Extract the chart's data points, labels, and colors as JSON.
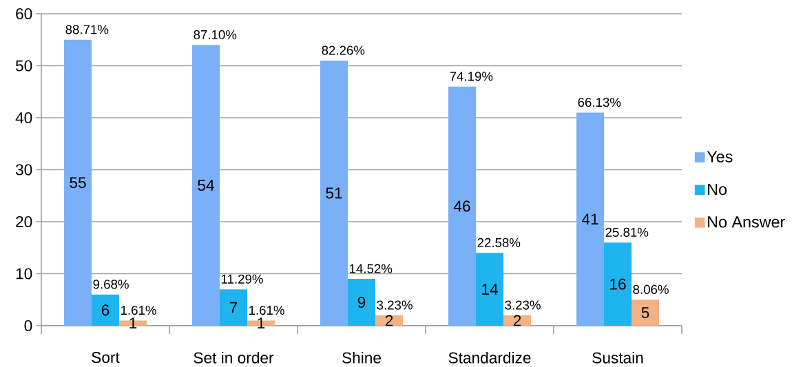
{
  "chart_data": {
    "type": "bar",
    "categories": [
      "Sort",
      "Set in order",
      "Shine",
      "Standardize",
      "Sustain"
    ],
    "series": [
      {
        "name": "Yes",
        "color": "#7ab0f8",
        "values": [
          55,
          54,
          51,
          46,
          41
        ]
      },
      {
        "name": "No",
        "color": "#1fb4f0",
        "values": [
          6,
          7,
          9,
          14,
          16
        ]
      },
      {
        "name": "No Answer",
        "color": "#f4b183",
        "values": [
          1,
          1,
          2,
          2,
          5
        ]
      }
    ],
    "annotations": [
      "88.71%",
      "87.10%",
      "82.26%",
      "74.19%",
      "66.13%",
      "9.68%",
      "11.29%",
      "14.52%",
      "22.58%",
      "25.81%",
      "1.61%",
      "1.61%",
      "3.23%",
      "3.23%",
      "8.06%"
    ],
    "ylim": [
      0,
      60
    ],
    "yticks": [
      0,
      10,
      20,
      30,
      40,
      50,
      60
    ],
    "grid": "y",
    "legend": "right",
    "data_labels": true
  }
}
